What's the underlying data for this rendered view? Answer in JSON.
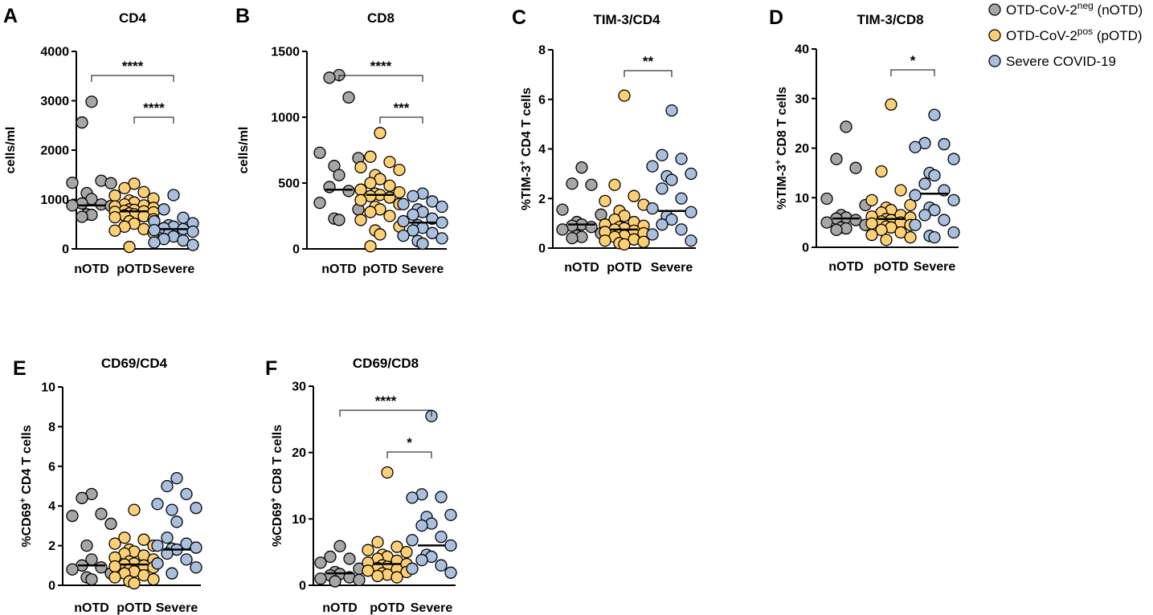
{
  "legend": [
    {
      "main": "OTD-CoV-2",
      "sup": "neg",
      "tail": " (nOTD)",
      "color": "#a6a6a6"
    },
    {
      "main": "OTD-CoV-2",
      "sup": "pos",
      "tail": " (pOTD)",
      "color": "#fdd076"
    },
    {
      "main": "Severe COVID-19",
      "sup": "",
      "tail": "",
      "color": "#a9bfde"
    }
  ],
  "chart_data": [
    {
      "panel": "A",
      "type": "scatter",
      "title": "CD4",
      "ylabel": {
        "pre": "cells/ml",
        "sup": "",
        "post": ""
      },
      "ylim": [
        0,
        4000
      ],
      "yticks": [
        0,
        1000,
        2000,
        3000,
        4000
      ],
      "categories": [
        "nOTD",
        "pOTD",
        "Severe"
      ],
      "series": [
        {
          "name": "nOTD",
          "median": 880,
          "values": [
            2980,
            2560,
            1380,
            1340,
            1330,
            1130,
            1010,
            920,
            900,
            880,
            870,
            700,
            690,
            650
          ]
        },
        {
          "name": "pOTD",
          "median": 760,
          "values": [
            1320,
            1230,
            1150,
            1080,
            1020,
            980,
            940,
            900,
            880,
            860,
            830,
            800,
            790,
            770,
            760,
            750,
            740,
            720,
            700,
            680,
            660,
            640,
            600,
            560,
            510,
            450,
            400,
            370,
            330,
            40
          ]
        },
        {
          "name": "Severe",
          "median": 400,
          "values": [
            1090,
            800,
            630,
            560,
            520,
            480,
            450,
            420,
            400,
            380,
            350,
            300,
            250,
            200,
            170,
            130,
            80
          ]
        }
      ],
      "brackets": [
        {
          "from": "nOTD",
          "to": "Severe",
          "label": "****"
        },
        {
          "from": "pOTD",
          "to": "Severe",
          "label": "****"
        }
      ]
    },
    {
      "panel": "B",
      "type": "scatter",
      "title": "CD8",
      "ylabel": {
        "pre": "cells/ml",
        "sup": "",
        "post": ""
      },
      "ylim": [
        0,
        1500
      ],
      "yticks": [
        0,
        500,
        1000,
        1500
      ],
      "categories": [
        "nOTD",
        "pOTD",
        "Severe"
      ],
      "series": [
        {
          "name": "nOTD",
          "median": 450,
          "values": [
            1320,
            1300,
            1150,
            730,
            690,
            630,
            560,
            470,
            440,
            350,
            300,
            230,
            220
          ]
        },
        {
          "name": "pOTD",
          "median": 410,
          "values": [
            880,
            700,
            660,
            620,
            600,
            560,
            530,
            500,
            480,
            450,
            430,
            420,
            410,
            400,
            390,
            370,
            340,
            320,
            300,
            280,
            250,
            220,
            170,
            140,
            110,
            20
          ]
        },
        {
          "name": "Severe",
          "median": 200,
          "values": [
            420,
            400,
            360,
            340,
            320,
            300,
            280,
            260,
            230,
            210,
            200,
            180,
            160,
            140,
            120,
            100,
            80,
            60,
            40
          ]
        }
      ],
      "brackets": [
        {
          "from": "nOTD",
          "to": "Severe",
          "label": "****"
        },
        {
          "from": "pOTD",
          "to": "Severe",
          "label": "***"
        }
      ]
    },
    {
      "panel": "C",
      "type": "scatter",
      "title": "TIM-3/CD4",
      "ylabel": {
        "pre": "%TIM-3",
        "sup": "+",
        "post": " CD4 T cells"
      },
      "ylim": [
        0,
        8
      ],
      "yticks": [
        0,
        2,
        4,
        6,
        8
      ],
      "categories": [
        "nOTD",
        "pOTD",
        "Severe"
      ],
      "series": [
        {
          "name": "nOTD",
          "median": 0.95,
          "values": [
            3.25,
            2.6,
            2.55,
            1.55,
            1.35,
            1.05,
            0.95,
            0.9,
            0.85,
            0.75,
            0.6,
            0.5,
            0.45,
            0.4
          ]
        },
        {
          "name": "pOTD",
          "median": 0.75,
          "values": [
            6.15,
            2.55,
            2.1,
            1.9,
            1.75,
            1.5,
            1.3,
            1.15,
            1.05,
            0.95,
            0.9,
            0.85,
            0.8,
            0.75,
            0.7,
            0.65,
            0.6,
            0.55,
            0.5,
            0.45,
            0.35,
            0.3,
            0.25,
            0.2,
            0.15
          ]
        },
        {
          "name": "Severe",
          "median": 1.5,
          "values": [
            5.55,
            3.75,
            3.6,
            3.3,
            3.0,
            2.9,
            2.75,
            2.4,
            2.0,
            1.6,
            1.45,
            1.3,
            1.15,
            0.95,
            0.75,
            0.55,
            0.3
          ]
        }
      ],
      "brackets": [
        {
          "from": "pOTD",
          "to": "Severe",
          "label": "**"
        }
      ]
    },
    {
      "panel": "D",
      "type": "scatter",
      "title": "TIM-3/CD8",
      "ylabel": {
        "pre": "%TIM-3",
        "sup": "+",
        "post": " CD8 T cells"
      },
      "ylim": [
        0,
        40
      ],
      "yticks": [
        0,
        10,
        20,
        30,
        40
      ],
      "categories": [
        "nOTD",
        "pOTD",
        "Severe"
      ],
      "series": [
        {
          "name": "nOTD",
          "median": 5.8,
          "values": [
            24.3,
            17.8,
            16.0,
            9.8,
            8.5,
            6.5,
            6.0,
            5.8,
            5.5,
            5.0,
            4.5,
            4.0,
            3.8,
            3.5
          ]
        },
        {
          "name": "pOTD",
          "median": 5.7,
          "values": [
            28.8,
            15.3,
            11.5,
            9.5,
            8.5,
            8.0,
            7.5,
            7.0,
            6.5,
            6.2,
            6.0,
            5.7,
            5.5,
            5.2,
            5.0,
            4.8,
            4.5,
            4.2,
            4.0,
            3.5,
            3.0,
            2.5,
            2.0,
            1.5
          ]
        },
        {
          "name": "Severe",
          "median": 10.8,
          "values": [
            26.7,
            21.0,
            20.8,
            20.2,
            17.8,
            15.0,
            14.5,
            12.8,
            11.5,
            10.5,
            9.5,
            8.0,
            7.5,
            6.5,
            5.5,
            4.5,
            3.0,
            2.3,
            2.0
          ]
        }
      ],
      "brackets": [
        {
          "from": "pOTD",
          "to": "Severe",
          "label": "*"
        }
      ]
    },
    {
      "panel": "E",
      "type": "scatter",
      "title": "CD69/CD4",
      "ylabel": {
        "pre": "%CD69",
        "sup": "+",
        "post": " CD4 T cells"
      },
      "ylim": [
        0,
        10
      ],
      "yticks": [
        0,
        2,
        4,
        6,
        8,
        10
      ],
      "categories": [
        "nOTD",
        "pOTD",
        "Severe"
      ],
      "series": [
        {
          "name": "nOTD",
          "median": 1.0,
          "values": [
            4.6,
            4.4,
            3.6,
            3.5,
            3.1,
            2.0,
            1.3,
            1.0,
            0.9,
            0.8,
            0.6,
            0.4,
            0.3
          ]
        },
        {
          "name": "pOTD",
          "median": 1.05,
          "values": [
            3.8,
            2.4,
            2.3,
            2.1,
            2.0,
            1.8,
            1.7,
            1.6,
            1.5,
            1.4,
            1.3,
            1.2,
            1.1,
            1.05,
            1.0,
            0.95,
            0.9,
            0.8,
            0.7,
            0.6,
            0.5,
            0.4,
            0.3,
            0.2,
            0.1
          ]
        },
        {
          "name": "Severe",
          "median": 1.8,
          "values": [
            5.4,
            5.0,
            4.6,
            4.1,
            3.9,
            3.8,
            3.2,
            2.4,
            2.1,
            2.0,
            1.9,
            1.85,
            1.8,
            1.6,
            1.3,
            1.1,
            0.9,
            0.6
          ]
        }
      ],
      "brackets": []
    },
    {
      "panel": "F",
      "type": "scatter",
      "title": "CD69/CD8",
      "ylabel": {
        "pre": "%CD69",
        "sup": "+",
        "post": " CD8 T cells"
      },
      "ylim": [
        0,
        30
      ],
      "yticks": [
        0,
        10,
        20,
        30
      ],
      "categories": [
        "nOTD",
        "pOTD",
        "Severe"
      ],
      "series": [
        {
          "name": "nOTD",
          "median": 1.8,
          "values": [
            5.9,
            4.3,
            4.0,
            3.4,
            2.5,
            2.0,
            1.7,
            1.5,
            1.2,
            1.0,
            0.8,
            0.6
          ]
        },
        {
          "name": "pOTD",
          "median": 3.2,
          "values": [
            17.0,
            6.5,
            5.8,
            5.3,
            5.0,
            4.6,
            4.3,
            4.0,
            3.7,
            3.4,
            3.2,
            3.0,
            2.8,
            2.6,
            2.4,
            2.2,
            2.0,
            1.8,
            1.6,
            1.4,
            1.2
          ]
        },
        {
          "name": "Severe",
          "median": 6.0,
          "values": [
            25.5,
            13.7,
            13.3,
            13.2,
            10.6,
            10.3,
            9.3,
            9.0,
            7.3,
            6.8,
            6.0,
            4.6,
            4.3,
            3.8,
            3.0,
            2.5,
            1.9
          ]
        }
      ],
      "brackets": [
        {
          "from": "nOTD",
          "to": "Severe",
          "label": "****"
        },
        {
          "from": "pOTD",
          "to": "Severe",
          "label": "*"
        }
      ]
    }
  ]
}
